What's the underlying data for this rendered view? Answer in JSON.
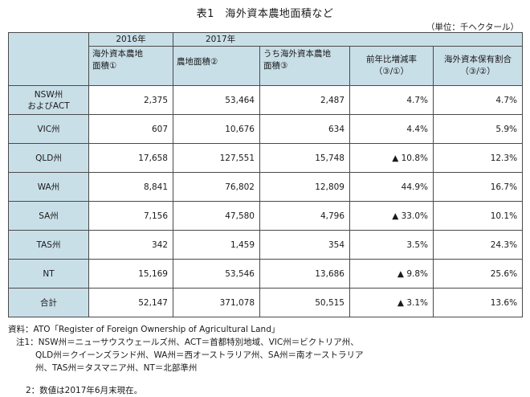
{
  "title": "表1　海外資本農地面積など",
  "unit": "（単位：千ヘクタール）",
  "header": {
    "year_2016": "2016年",
    "year_2017": "2017年",
    "col1": "海外資本農地\n面積①",
    "col2": "農地面積②",
    "col3": "うち海外資本農地\n面積③",
    "col4": "前年比増減率\n（③/①）",
    "col5": "海外資本保有割合\n（③/②）"
  },
  "rows": [
    {
      "region": "NSW州\nおよびACT",
      "foreign_2016": "2,375",
      "farmland_2017": "53,464",
      "foreign_2017": "2,487",
      "change": "4.7%",
      "share": "4.7%"
    },
    {
      "region": "VIC州",
      "foreign_2016": "607",
      "farmland_2017": "10,676",
      "foreign_2017": "634",
      "change": "4.4%",
      "share": "5.9%"
    },
    {
      "region": "QLD州",
      "foreign_2016": "17,658",
      "farmland_2017": "127,551",
      "foreign_2017": "15,748",
      "change": "▲ 10.8%",
      "share": "12.3%"
    },
    {
      "region": "WA州",
      "foreign_2016": "8,841",
      "farmland_2017": "76,802",
      "foreign_2017": "12,809",
      "change": "44.9%",
      "share": "16.7%"
    },
    {
      "region": "SA州",
      "foreign_2016": "7,156",
      "farmland_2017": "47,580",
      "foreign_2017": "4,796",
      "change": "▲ 33.0%",
      "share": "10.1%"
    },
    {
      "region": "TAS州",
      "foreign_2016": "342",
      "farmland_2017": "1,459",
      "foreign_2017": "354",
      "change": "3.5%",
      "share": "24.3%"
    },
    {
      "region": "NT",
      "foreign_2016": "15,169",
      "farmland_2017": "53,546",
      "foreign_2017": "13,686",
      "change": "▲ 9.8%",
      "share": "25.6%"
    },
    {
      "region": "合計",
      "foreign_2016": "52,147",
      "farmland_2017": "371,078",
      "foreign_2017": "50,515",
      "change": "▲ 3.1%",
      "share": "13.6%"
    }
  ],
  "notes": {
    "source": "資料：ATO「Register of Foreign Ownership of Agricultural Land」",
    "note1_line1": "注1：NSW州＝ニューサウスウェールズ州、ACT＝首都特別地域、VIC州＝ビクトリア州、",
    "note1_line2": "QLD州＝クイーンズランド州、WA州＝西オーストラリア州、SA州＝南オーストラリア",
    "note1_line3": "州、TAS州＝タスマニア州、NT＝北部準州",
    "note2": "2：数値は2017年6月末現在。"
  }
}
